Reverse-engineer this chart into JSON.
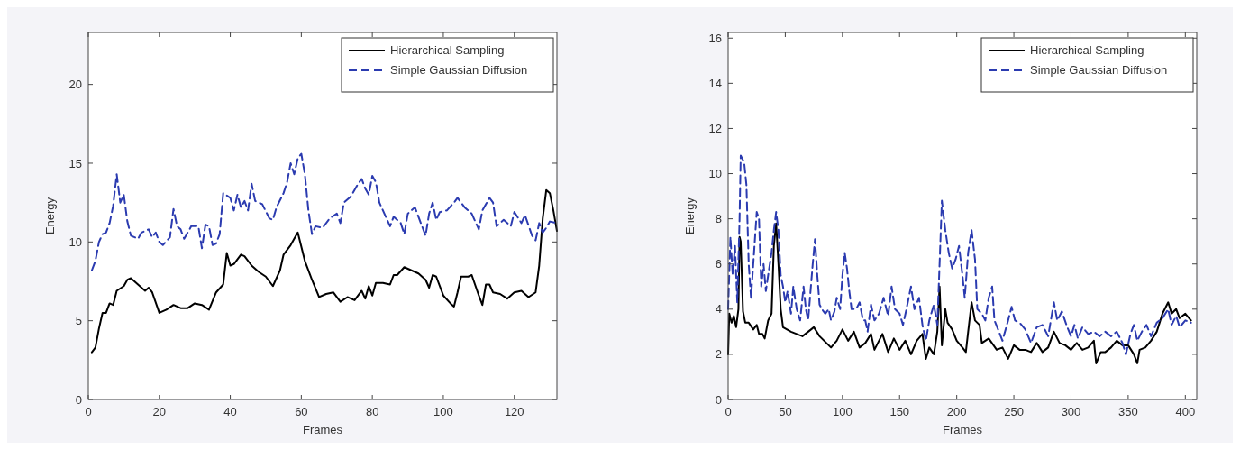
{
  "chart_data": [
    {
      "type": "line",
      "xlabel": "Frames",
      "ylabel": "Energy",
      "xlim": [
        0,
        132
      ],
      "ylim": [
        0,
        23.3
      ],
      "xticks": [
        0,
        20,
        40,
        60,
        80,
        100,
        120
      ],
      "yticks": [
        0,
        5,
        10,
        15,
        20
      ],
      "legend": "top right",
      "series": [
        {
          "name": "Hierarchical Sampling",
          "color": "#000000",
          "line_style": "solid",
          "x": [
            1,
            2,
            3,
            4,
            5,
            6,
            7,
            8,
            10,
            11,
            12,
            14,
            16,
            17,
            18,
            20,
            22,
            24,
            26,
            28,
            30,
            32,
            34,
            36,
            38,
            39,
            40,
            41,
            43,
            44,
            46,
            48,
            50,
            52,
            54,
            55,
            57,
            59,
            61,
            63,
            65,
            67,
            69,
            71,
            73,
            75,
            77,
            78,
            79,
            80,
            81,
            83,
            85,
            86,
            87,
            89,
            91,
            93,
            95,
            96,
            97,
            98,
            100,
            102,
            103,
            104,
            105,
            107,
            108,
            110,
            111,
            112,
            113,
            114,
            116,
            118,
            120,
            122,
            124,
            126,
            127,
            128,
            129,
            130,
            131,
            132
          ],
          "values": [
            3.0,
            3.3,
            4.5,
            5.5,
            5.5,
            6.1,
            6.0,
            6.9,
            7.2,
            7.6,
            7.7,
            7.3,
            6.9,
            7.1,
            6.8,
            5.5,
            5.7,
            6.0,
            5.8,
            5.8,
            6.1,
            6.0,
            5.7,
            6.8,
            7.3,
            9.3,
            8.5,
            8.6,
            9.2,
            9.1,
            8.5,
            8.1,
            7.8,
            7.2,
            8.2,
            9.2,
            9.8,
            10.6,
            8.8,
            7.6,
            6.5,
            6.7,
            6.8,
            6.2,
            6.5,
            6.3,
            6.9,
            6.4,
            7.2,
            6.6,
            7.4,
            7.4,
            7.3,
            7.9,
            7.9,
            8.4,
            8.2,
            8.0,
            7.6,
            7.1,
            7.9,
            7.8,
            6.6,
            6.1,
            5.9,
            6.8,
            7.8,
            7.8,
            7.9,
            6.6,
            6.0,
            7.3,
            7.3,
            6.8,
            6.7,
            6.4,
            6.8,
            6.9,
            6.5,
            6.8,
            8.5,
            11.5,
            13.3,
            13.1,
            12.0,
            10.7
          ]
        },
        {
          "name": "Simple Gaussian Diffusion",
          "color": "#2b3bb0",
          "line_style": "dashed",
          "x": [
            1,
            2,
            3,
            4,
            5,
            6,
            7,
            8,
            9,
            10,
            11,
            12,
            14,
            15,
            17,
            18,
            19,
            20,
            21,
            23,
            24,
            25,
            26,
            27,
            29,
            31,
            32,
            33,
            34,
            35,
            36,
            37,
            38,
            40,
            41,
            42,
            43,
            44,
            45,
            46,
            47,
            49,
            51,
            52,
            53,
            55,
            56,
            57,
            58,
            59,
            60,
            61,
            62,
            63,
            64,
            66,
            68,
            70,
            71,
            72,
            74,
            76,
            77,
            78,
            79,
            80,
            81,
            82,
            84,
            85,
            86,
            88,
            89,
            90,
            92,
            94,
            95,
            96,
            97,
            98,
            99,
            101,
            103,
            104,
            106,
            108,
            110,
            111,
            113,
            114,
            115,
            117,
            119,
            120,
            122,
            123,
            125,
            126,
            127,
            128,
            129,
            130,
            132
          ],
          "values": [
            8.2,
            8.8,
            10.0,
            10.5,
            10.6,
            11.2,
            12.3,
            14.3,
            12.5,
            13.0,
            11.3,
            10.4,
            10.2,
            10.6,
            10.8,
            10.3,
            10.6,
            10.0,
            9.8,
            10.3,
            12.1,
            11.0,
            10.8,
            10.2,
            11.0,
            11.0,
            9.6,
            11.1,
            11.0,
            9.8,
            9.9,
            10.5,
            13.1,
            12.8,
            12.0,
            13.0,
            12.2,
            12.6,
            12.0,
            13.7,
            12.6,
            12.4,
            11.5,
            11.4,
            12.2,
            13.1,
            13.8,
            15.0,
            14.3,
            15.3,
            15.6,
            14.3,
            12.0,
            10.5,
            11.0,
            10.9,
            11.5,
            11.8,
            11.2,
            12.5,
            12.9,
            13.7,
            14.0,
            13.4,
            13.0,
            14.2,
            13.8,
            12.5,
            11.5,
            11.0,
            11.6,
            11.2,
            10.5,
            11.8,
            12.2,
            11.0,
            10.4,
            11.8,
            12.5,
            11.4,
            11.9,
            12.0,
            12.5,
            12.8,
            12.2,
            11.8,
            10.8,
            12.0,
            12.8,
            12.5,
            11.0,
            11.4,
            11.0,
            11.9,
            11.2,
            11.7,
            10.4,
            10.1,
            11.2,
            10.6,
            10.9,
            11.3,
            11.2
          ]
        }
      ]
    },
    {
      "type": "line",
      "xlabel": "Frames",
      "ylabel": "Energy",
      "xlim": [
        0,
        410
      ],
      "ylim": [
        0,
        16.25
      ],
      "xticks": [
        0,
        50,
        100,
        150,
        200,
        250,
        300,
        350,
        400
      ],
      "yticks": [
        0,
        2,
        4,
        6,
        8,
        10,
        12,
        14,
        16
      ],
      "legend": "top right",
      "series": [
        {
          "name": "Hierarchical Sampling",
          "color": "#000000",
          "line_style": "solid",
          "x": [
            0,
            1,
            3,
            5,
            7,
            9,
            10,
            11,
            13,
            15,
            18,
            22,
            25,
            27,
            30,
            32,
            35,
            38,
            40,
            42,
            44,
            46,
            48,
            55,
            65,
            75,
            80,
            90,
            95,
            100,
            105,
            110,
            115,
            120,
            125,
            128,
            135,
            140,
            145,
            150,
            155,
            160,
            165,
            170,
            173,
            176,
            180,
            183,
            185,
            187,
            190,
            192,
            196,
            200,
            205,
            208,
            210,
            213,
            216,
            220,
            222,
            228,
            235,
            240,
            245,
            250,
            255,
            260,
            265,
            270,
            275,
            280,
            285,
            290,
            295,
            300,
            305,
            310,
            315,
            320,
            322,
            326,
            330,
            335,
            340,
            345,
            350,
            355,
            358,
            360,
            365,
            370,
            375,
            380,
            385,
            388,
            392,
            395,
            400,
            405
          ],
          "values": [
            2.0,
            3.8,
            3.4,
            3.7,
            3.2,
            4.0,
            7.2,
            7.0,
            3.9,
            3.4,
            3.4,
            3.1,
            3.3,
            2.9,
            2.9,
            2.7,
            3.5,
            3.8,
            6.8,
            7.8,
            6.0,
            4.0,
            3.2,
            3.0,
            2.8,
            3.2,
            2.8,
            2.3,
            2.6,
            3.1,
            2.6,
            3.0,
            2.3,
            2.5,
            2.9,
            2.2,
            2.9,
            2.1,
            2.7,
            2.2,
            2.6,
            2.0,
            2.6,
            2.9,
            1.8,
            2.3,
            2.0,
            3.0,
            5.0,
            2.4,
            4.0,
            3.4,
            3.1,
            2.6,
            2.3,
            2.1,
            3.0,
            4.3,
            3.5,
            3.3,
            2.5,
            2.7,
            2.2,
            2.3,
            1.8,
            2.4,
            2.2,
            2.2,
            2.1,
            2.5,
            2.1,
            2.3,
            3.0,
            2.5,
            2.4,
            2.2,
            2.5,
            2.2,
            2.3,
            2.6,
            1.6,
            2.1,
            2.1,
            2.3,
            2.6,
            2.4,
            2.4,
            2.0,
            1.6,
            2.2,
            2.3,
            2.6,
            3.0,
            3.8,
            4.3,
            3.8,
            4.0,
            3.6,
            3.8,
            3.5
          ]
        },
        {
          "name": "Simple Gaussian Diffusion",
          "color": "#2b3bb0",
          "line_style": "dashed",
          "x": [
            0,
            2,
            4,
            6,
            8,
            10,
            11,
            14,
            16,
            18,
            20,
            22,
            25,
            27,
            29,
            31,
            33,
            35,
            38,
            40,
            42,
            44,
            46,
            48,
            50,
            52,
            55,
            57,
            60,
            63,
            66,
            68,
            70,
            74,
            76,
            78,
            80,
            82,
            85,
            88,
            90,
            93,
            95,
            98,
            100,
            102,
            104,
            106,
            108,
            112,
            115,
            118,
            120,
            122,
            125,
            128,
            132,
            136,
            140,
            143,
            146,
            150,
            153,
            156,
            160,
            163,
            167,
            170,
            173,
            176,
            180,
            183,
            185,
            187,
            190,
            193,
            196,
            199,
            202,
            205,
            207,
            210,
            213,
            216,
            218,
            222,
            225,
            228,
            231,
            233,
            237,
            240,
            245,
            248,
            251,
            255,
            260,
            265,
            270,
            275,
            280,
            285,
            288,
            292,
            296,
            300,
            303,
            306,
            310,
            315,
            320,
            325,
            330,
            335,
            340,
            345,
            348,
            352,
            355,
            358,
            362,
            366,
            370,
            375,
            380,
            385,
            388,
            392,
            395,
            400,
            405
          ],
          "values": [
            4.0,
            7.2,
            5.5,
            6.8,
            4.3,
            8.0,
            10.8,
            10.5,
            9.5,
            6.0,
            4.5,
            6.0,
            8.3,
            8.0,
            5.0,
            6.0,
            4.8,
            5.5,
            6.5,
            7.5,
            8.3,
            7.5,
            5.5,
            5.0,
            4.3,
            4.8,
            3.8,
            5.0,
            4.0,
            3.5,
            5.0,
            4.0,
            3.5,
            6.0,
            7.1,
            5.5,
            4.2,
            4.0,
            3.8,
            4.0,
            3.5,
            3.9,
            4.5,
            4.0,
            5.5,
            6.5,
            5.8,
            4.8,
            4.0,
            4.0,
            4.3,
            3.5,
            3.5,
            3.0,
            4.2,
            3.5,
            3.8,
            4.5,
            3.7,
            5.0,
            4.0,
            3.8,
            3.3,
            4.0,
            5.0,
            4.0,
            4.5,
            3.3,
            2.6,
            3.5,
            4.2,
            3.3,
            6.0,
            8.8,
            7.5,
            6.5,
            5.8,
            6.2,
            6.8,
            5.5,
            4.5,
            6.5,
            7.5,
            6.2,
            4.0,
            3.8,
            3.5,
            4.5,
            5.0,
            3.5,
            3.0,
            2.6,
            3.5,
            4.1,
            3.5,
            3.4,
            3.1,
            2.5,
            3.2,
            3.3,
            2.8,
            4.3,
            3.5,
            3.9,
            3.3,
            2.8,
            3.3,
            2.7,
            3.2,
            2.9,
            3.0,
            2.8,
            3.0,
            2.8,
            3.0,
            2.5,
            2.0,
            2.9,
            3.3,
            2.6,
            3.0,
            3.3,
            2.8,
            3.4,
            3.6,
            4.0,
            3.3,
            3.7,
            3.2,
            3.5,
            3.4
          ]
        }
      ]
    }
  ]
}
